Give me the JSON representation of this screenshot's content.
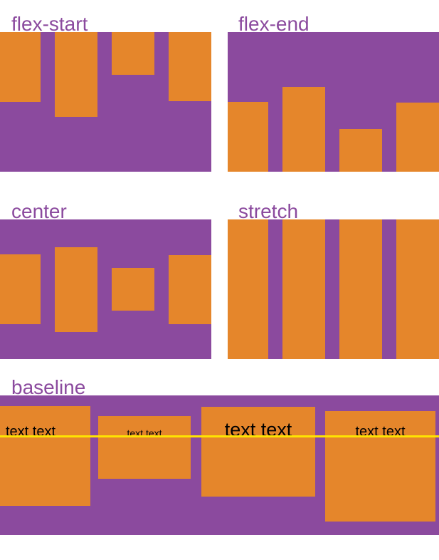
{
  "diagram": {
    "title_meaning": "CSS align-items values illustration",
    "panels": [
      {
        "label": "flex-start"
      },
      {
        "label": "flex-end"
      },
      {
        "label": "center"
      },
      {
        "label": "stretch"
      },
      {
        "label": "baseline"
      }
    ],
    "baseline_boxes": [
      {
        "text": "text text"
      },
      {
        "text": "text text"
      },
      {
        "text": "text text"
      },
      {
        "text": "text text"
      }
    ]
  },
  "colors": {
    "purple": "#8b4a9e",
    "orange": "#e5862b",
    "label_text": "#8b4a9e",
    "baseline_line": "#ffe400",
    "box_text": "#000000"
  }
}
